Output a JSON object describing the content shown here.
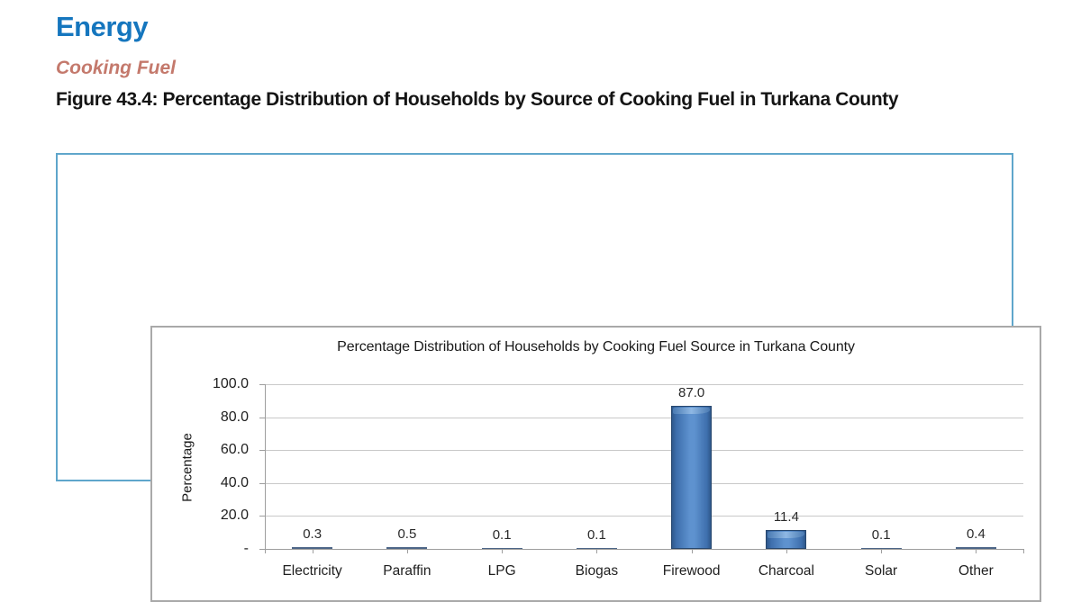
{
  "page": {
    "section_title": "Energy",
    "subsection_title": "Cooking Fuel",
    "figure_caption": "Figure 43.4: Percentage Distribution of Households by Source of Cooking Fuel in Turkana County"
  },
  "colors": {
    "section_title_blue": "#1576BE",
    "subsection_salmon": "#C4796C",
    "figure_border_blue": "#5FA6CB",
    "chart_border_gray": "#A9A9A9",
    "bar_fill_blue": "#4F81BD",
    "bar_edge_navy": "#27476E",
    "gridline_gray": "#C9C9C9",
    "axis_gray": "#9E9E9E"
  },
  "chart_data": {
    "type": "bar",
    "title": "Percentage Distribution of Households by Cooking Fuel Source in Turkana County",
    "xlabel": "",
    "ylabel": "Percentage",
    "categories": [
      "Electricity",
      "Paraffin",
      "LPG",
      "Biogas",
      "Firewood",
      "Charcoal",
      "Solar",
      "Other"
    ],
    "values": [
      0.3,
      0.5,
      0.1,
      0.1,
      87.0,
      11.4,
      0.1,
      0.4
    ],
    "data_labels": [
      "0.3",
      "0.5",
      "0.1",
      "0.1",
      "87.0",
      "11.4",
      "0.1",
      "0.4"
    ],
    "ylim": [
      0,
      100
    ],
    "yticks": [
      {
        "value": 100,
        "label": "100.0"
      },
      {
        "value": 80,
        "label": "80.0"
      },
      {
        "value": 60,
        "label": "60.0"
      },
      {
        "value": 40,
        "label": "40.0"
      },
      {
        "value": 20,
        "label": "20.0"
      },
      {
        "value": 0,
        "label": "-"
      }
    ],
    "grid": true,
    "legend": false
  }
}
